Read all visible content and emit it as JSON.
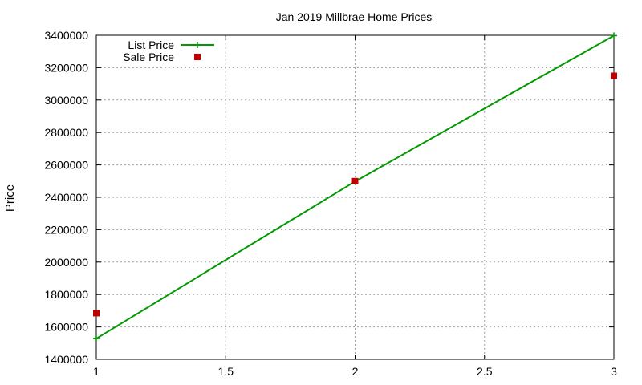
{
  "chart_data": {
    "type": "line",
    "title": "Jan 2019 Millbrae Home Prices",
    "xlabel": "",
    "ylabel": "Price",
    "xlim": [
      1,
      3
    ],
    "ylim": [
      1400000,
      3400000
    ],
    "x_ticks": [
      1,
      1.5,
      2,
      2.5,
      3
    ],
    "x_tick_labels": [
      "1",
      "1.5",
      "2",
      "2.5",
      "3"
    ],
    "y_ticks": [
      1400000,
      1600000,
      1800000,
      2000000,
      2200000,
      2400000,
      2600000,
      2800000,
      3000000,
      3200000,
      3400000
    ],
    "y_tick_labels": [
      "1400000",
      "1600000",
      "1800000",
      "2000000",
      "2200000",
      "2400000",
      "2600000",
      "2800000",
      "3000000",
      "3200000",
      "3400000"
    ],
    "grid": true,
    "legend_position": "top-left",
    "series": [
      {
        "name": "List Price",
        "style": "linespoints",
        "marker": "plus",
        "color": "#009900",
        "x": [
          1,
          2,
          3
        ],
        "values": [
          1528000,
          2498000,
          3398000
        ]
      },
      {
        "name": "Sale Price",
        "style": "points",
        "marker": "square",
        "color": "#c00000",
        "x": [
          1,
          2,
          3
        ],
        "values": [
          1685000,
          2500000,
          3150000
        ]
      }
    ]
  }
}
